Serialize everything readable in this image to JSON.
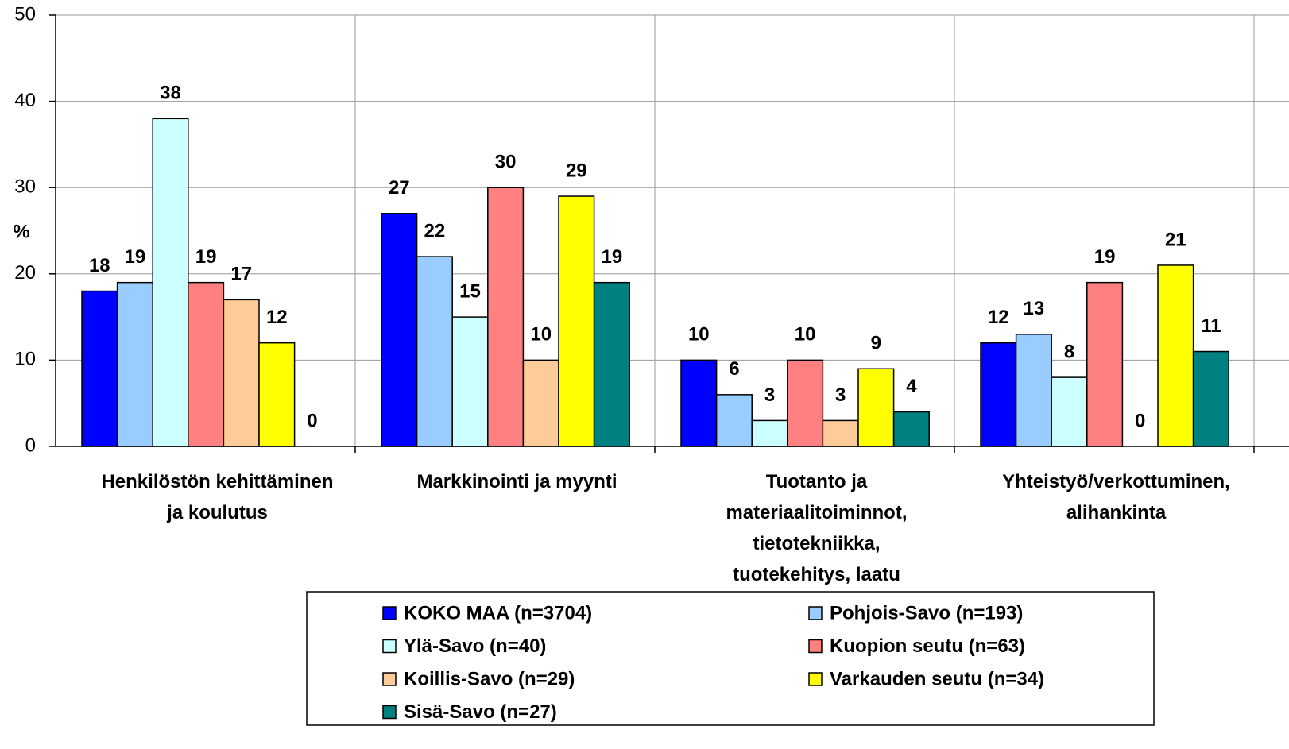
{
  "chart_data": {
    "type": "bar",
    "y_label": "%",
    "categories": [
      "Henkilöstön kehittäminen\nja koulutus",
      "Markkinointi ja myynti",
      "Tuotanto ja\nmateriaalitoiminnot,\ntietotekniikka,\ntuotekehitys, laatu",
      "Yhteistyö/verkottuminen,\nalihankinta"
    ],
    "series": [
      {
        "name": "KOKO MAA (n=3704)",
        "color": "#0000ff",
        "values": [
          18,
          27,
          10,
          12
        ]
      },
      {
        "name": "Pohjois-Savo (n=193)",
        "color": "#99ccff",
        "values": [
          19,
          22,
          6,
          13
        ]
      },
      {
        "name": "Ylä-Savo (n=40)",
        "color": "#ccffff",
        "values": [
          38,
          15,
          3,
          8
        ]
      },
      {
        "name": "Kuopion seutu (n=63)",
        "color": "#ff8080",
        "values": [
          19,
          30,
          10,
          19
        ]
      },
      {
        "name": "Koillis-Savo (n=29)",
        "color": "#ffcc99",
        "values": [
          17,
          10,
          3,
          0
        ]
      },
      {
        "name": "Varkauden seutu (n=34)",
        "color": "#ffff00",
        "values": [
          12,
          29,
          9,
          21
        ]
      },
      {
        "name": "Sisä-Savo (n=27)",
        "color": "#008080",
        "values": [
          0,
          19,
          4,
          11
        ]
      }
    ],
    "ylim": [
      0,
      50
    ],
    "yticks": [
      0,
      10,
      20,
      30,
      40,
      50
    ],
    "grid": true,
    "legend": "bottom"
  }
}
